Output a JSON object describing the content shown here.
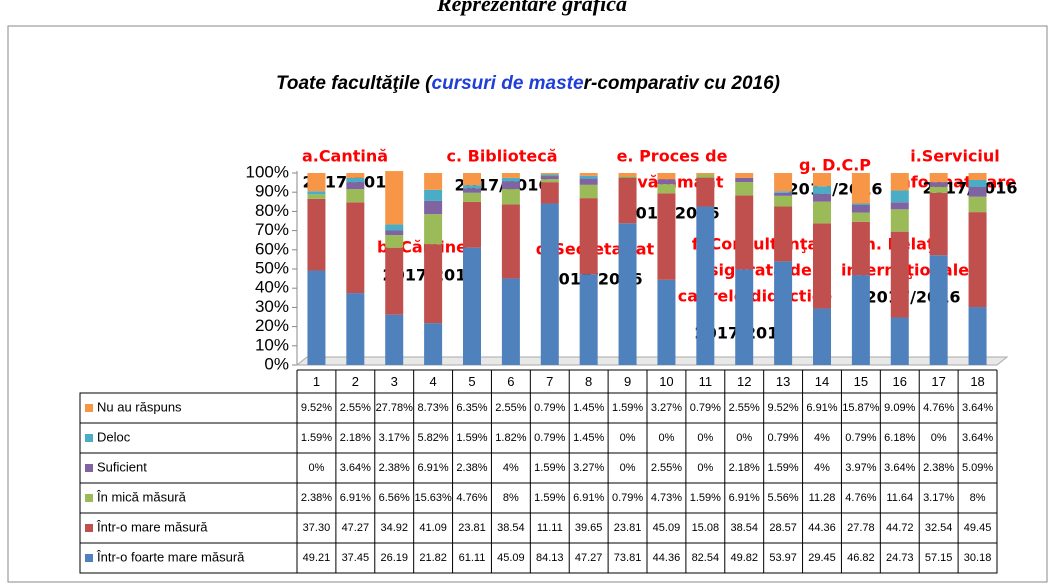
{
  "header": "Reprezentare grafică",
  "chart_data": {
    "type": "stacked_bar",
    "title": [
      "Toate facultăţile (",
      "cursuri de maste",
      "r-comparativ cu 2016)"
    ],
    "categories": [
      "1",
      "2",
      "3",
      "4",
      "5",
      "6",
      "7",
      "8",
      "9",
      "10",
      "11",
      "12",
      "13",
      "14",
      "15",
      "16",
      "17",
      "18"
    ],
    "ylim": [
      0,
      100
    ],
    "yticks": [
      {
        "value": 0,
        "label": "0%"
      },
      {
        "value": 10,
        "label": "10%"
      },
      {
        "value": 20,
        "label": "20%"
      },
      {
        "value": 30,
        "label": "30%"
      },
      {
        "value": 40,
        "label": "40%"
      },
      {
        "value": 50,
        "label": "50%"
      },
      {
        "value": 60,
        "label": "60%"
      },
      {
        "value": 70,
        "label": "70%"
      },
      {
        "value": 80,
        "label": "80%"
      },
      {
        "value": 90,
        "label": "90%"
      },
      {
        "value": 100,
        "label": "100%"
      }
    ],
    "series": [
      {
        "name": "Într-o foarte mare măsură",
        "color": "#4f81bd",
        "values": [
          49.21,
          37.45,
          26.19,
          21.82,
          61.11,
          45.09,
          84.13,
          47.27,
          73.81,
          44.36,
          82.54,
          49.82,
          53.97,
          29.45,
          46.82,
          24.73,
          57.15,
          30.18
        ],
        "value_labels": [
          "49.21",
          "37.45",
          "26.19",
          "21.82",
          "61.11",
          "45.09",
          "84.13",
          "47.27",
          "73.81",
          "44.36",
          "82.54",
          "49.82",
          "53.97",
          "29.45",
          "46.82",
          "24.73",
          "57.15",
          "30.18"
        ]
      },
      {
        "name": "Într-o mare măsură",
        "color": "#c0504d",
        "values": [
          37.3,
          47.27,
          34.92,
          41.09,
          23.81,
          38.54,
          11.11,
          39.65,
          23.81,
          45.09,
          15.08,
          38.54,
          28.57,
          44.36,
          27.78,
          44.72,
          32.54,
          49.45
        ],
        "value_labels": [
          "37.30",
          "47.27",
          "34.92",
          "41.09",
          "23.81",
          "38.54",
          "11.11",
          "39.65",
          "23.81",
          "45.09",
          "15.08",
          "38.54",
          "28.57",
          "44.36",
          "27.78",
          "44.72",
          "32.54",
          "49.45"
        ]
      },
      {
        "name": "În mică măsură",
        "color": "#9bbb59",
        "values": [
          2.38,
          6.91,
          6.56,
          15.63,
          4.76,
          8,
          1.59,
          6.91,
          0.79,
          4.73,
          1.59,
          6.91,
          5.56,
          11.28,
          4.76,
          11.64,
          3.17,
          8
        ],
        "value_labels": [
          "2.38%",
          "6.91%",
          "6.56%",
          "15.63%",
          "4.76%",
          "8%",
          "1.59%",
          "6.91%",
          "0.79%",
          "4.73%",
          "1.59%",
          "6.91%",
          "5.56%",
          "11.28",
          "4.76%",
          "11.64",
          "3.17%",
          "8%"
        ]
      },
      {
        "name": "Suficient",
        "color": "#8064a2",
        "values": [
          0,
          3.64,
          2.38,
          6.91,
          2.38,
          4,
          1.59,
          3.27,
          0,
          2.55,
          0,
          2.18,
          1.59,
          4,
          3.97,
          3.64,
          2.38,
          5.09
        ],
        "value_labels": [
          "0%",
          "3.64%",
          "2.38%",
          "6.91%",
          "2.38%",
          "4%",
          "1.59%",
          "3.27%",
          "0%",
          "2.55%",
          "0%",
          "2.18%",
          "1.59%",
          "4%",
          "3.97%",
          "3.64%",
          "2.38%",
          "5.09%"
        ]
      },
      {
        "name": "Deloc",
        "color": "#4bacc6",
        "values": [
          1.59,
          2.18,
          3.17,
          5.82,
          1.59,
          1.82,
          0.79,
          1.45,
          0,
          0,
          0,
          0,
          0.79,
          4,
          0.79,
          6.18,
          0,
          3.64
        ],
        "value_labels": [
          "1.59%",
          "2.18%",
          "3.17%",
          "5.82%",
          "1.59%",
          "1.82%",
          "0.79%",
          "1.45%",
          "0%",
          "0%",
          "0%",
          "0%",
          "0.79%",
          "4%",
          "0.79%",
          "6.18%",
          "0%",
          "3.64%"
        ]
      },
      {
        "name": "Nu au răspuns",
        "color": "#f79646",
        "values": [
          9.52,
          2.55,
          27.78,
          8.73,
          6.35,
          2.55,
          0.79,
          1.45,
          1.59,
          3.27,
          0.79,
          2.55,
          9.52,
          6.91,
          15.87,
          9.09,
          4.76,
          3.64
        ],
        "value_labels": [
          "9.52%",
          "2.55%",
          "27.78%",
          "8.73%",
          "6.35%",
          "2.55%",
          "0.79%",
          "1.45%",
          "1.59%",
          "3.27%",
          "0.79%",
          "2.55%",
          "9.52%",
          "6.91%",
          "15.87%",
          "9.09%",
          "4.76%",
          "3.64%"
        ]
      }
    ],
    "annotations": [
      {
        "lines": [
          "a.Cantină"
        ],
        "period": "2017/2016"
      },
      {
        "lines": [
          "b. Cămine"
        ],
        "period": "2017/2016"
      },
      {
        "lines": [
          "c. Bibliotecă"
        ],
        "period": "2017/2016"
      },
      {
        "lines": [
          "d.Secretariat"
        ],
        "period": "2017/2016"
      },
      {
        "lines": [
          "e. Proces de",
          "învăţământ"
        ],
        "period": "2017/2016"
      },
      {
        "lines": [
          "f. Consultanţa",
          "asigurată de",
          "cadrele didactice"
        ],
        "period": "2017/2016"
      },
      {
        "lines": [
          "g. D.C.P"
        ],
        "period": "2017/2016"
      },
      {
        "lines": [
          "h. Relaţii",
          "internaţionale"
        ],
        "period": "2017/2016"
      },
      {
        "lines": [
          "i.Serviciul",
          "informatizare"
        ],
        "period": "2017/2016"
      }
    ]
  }
}
